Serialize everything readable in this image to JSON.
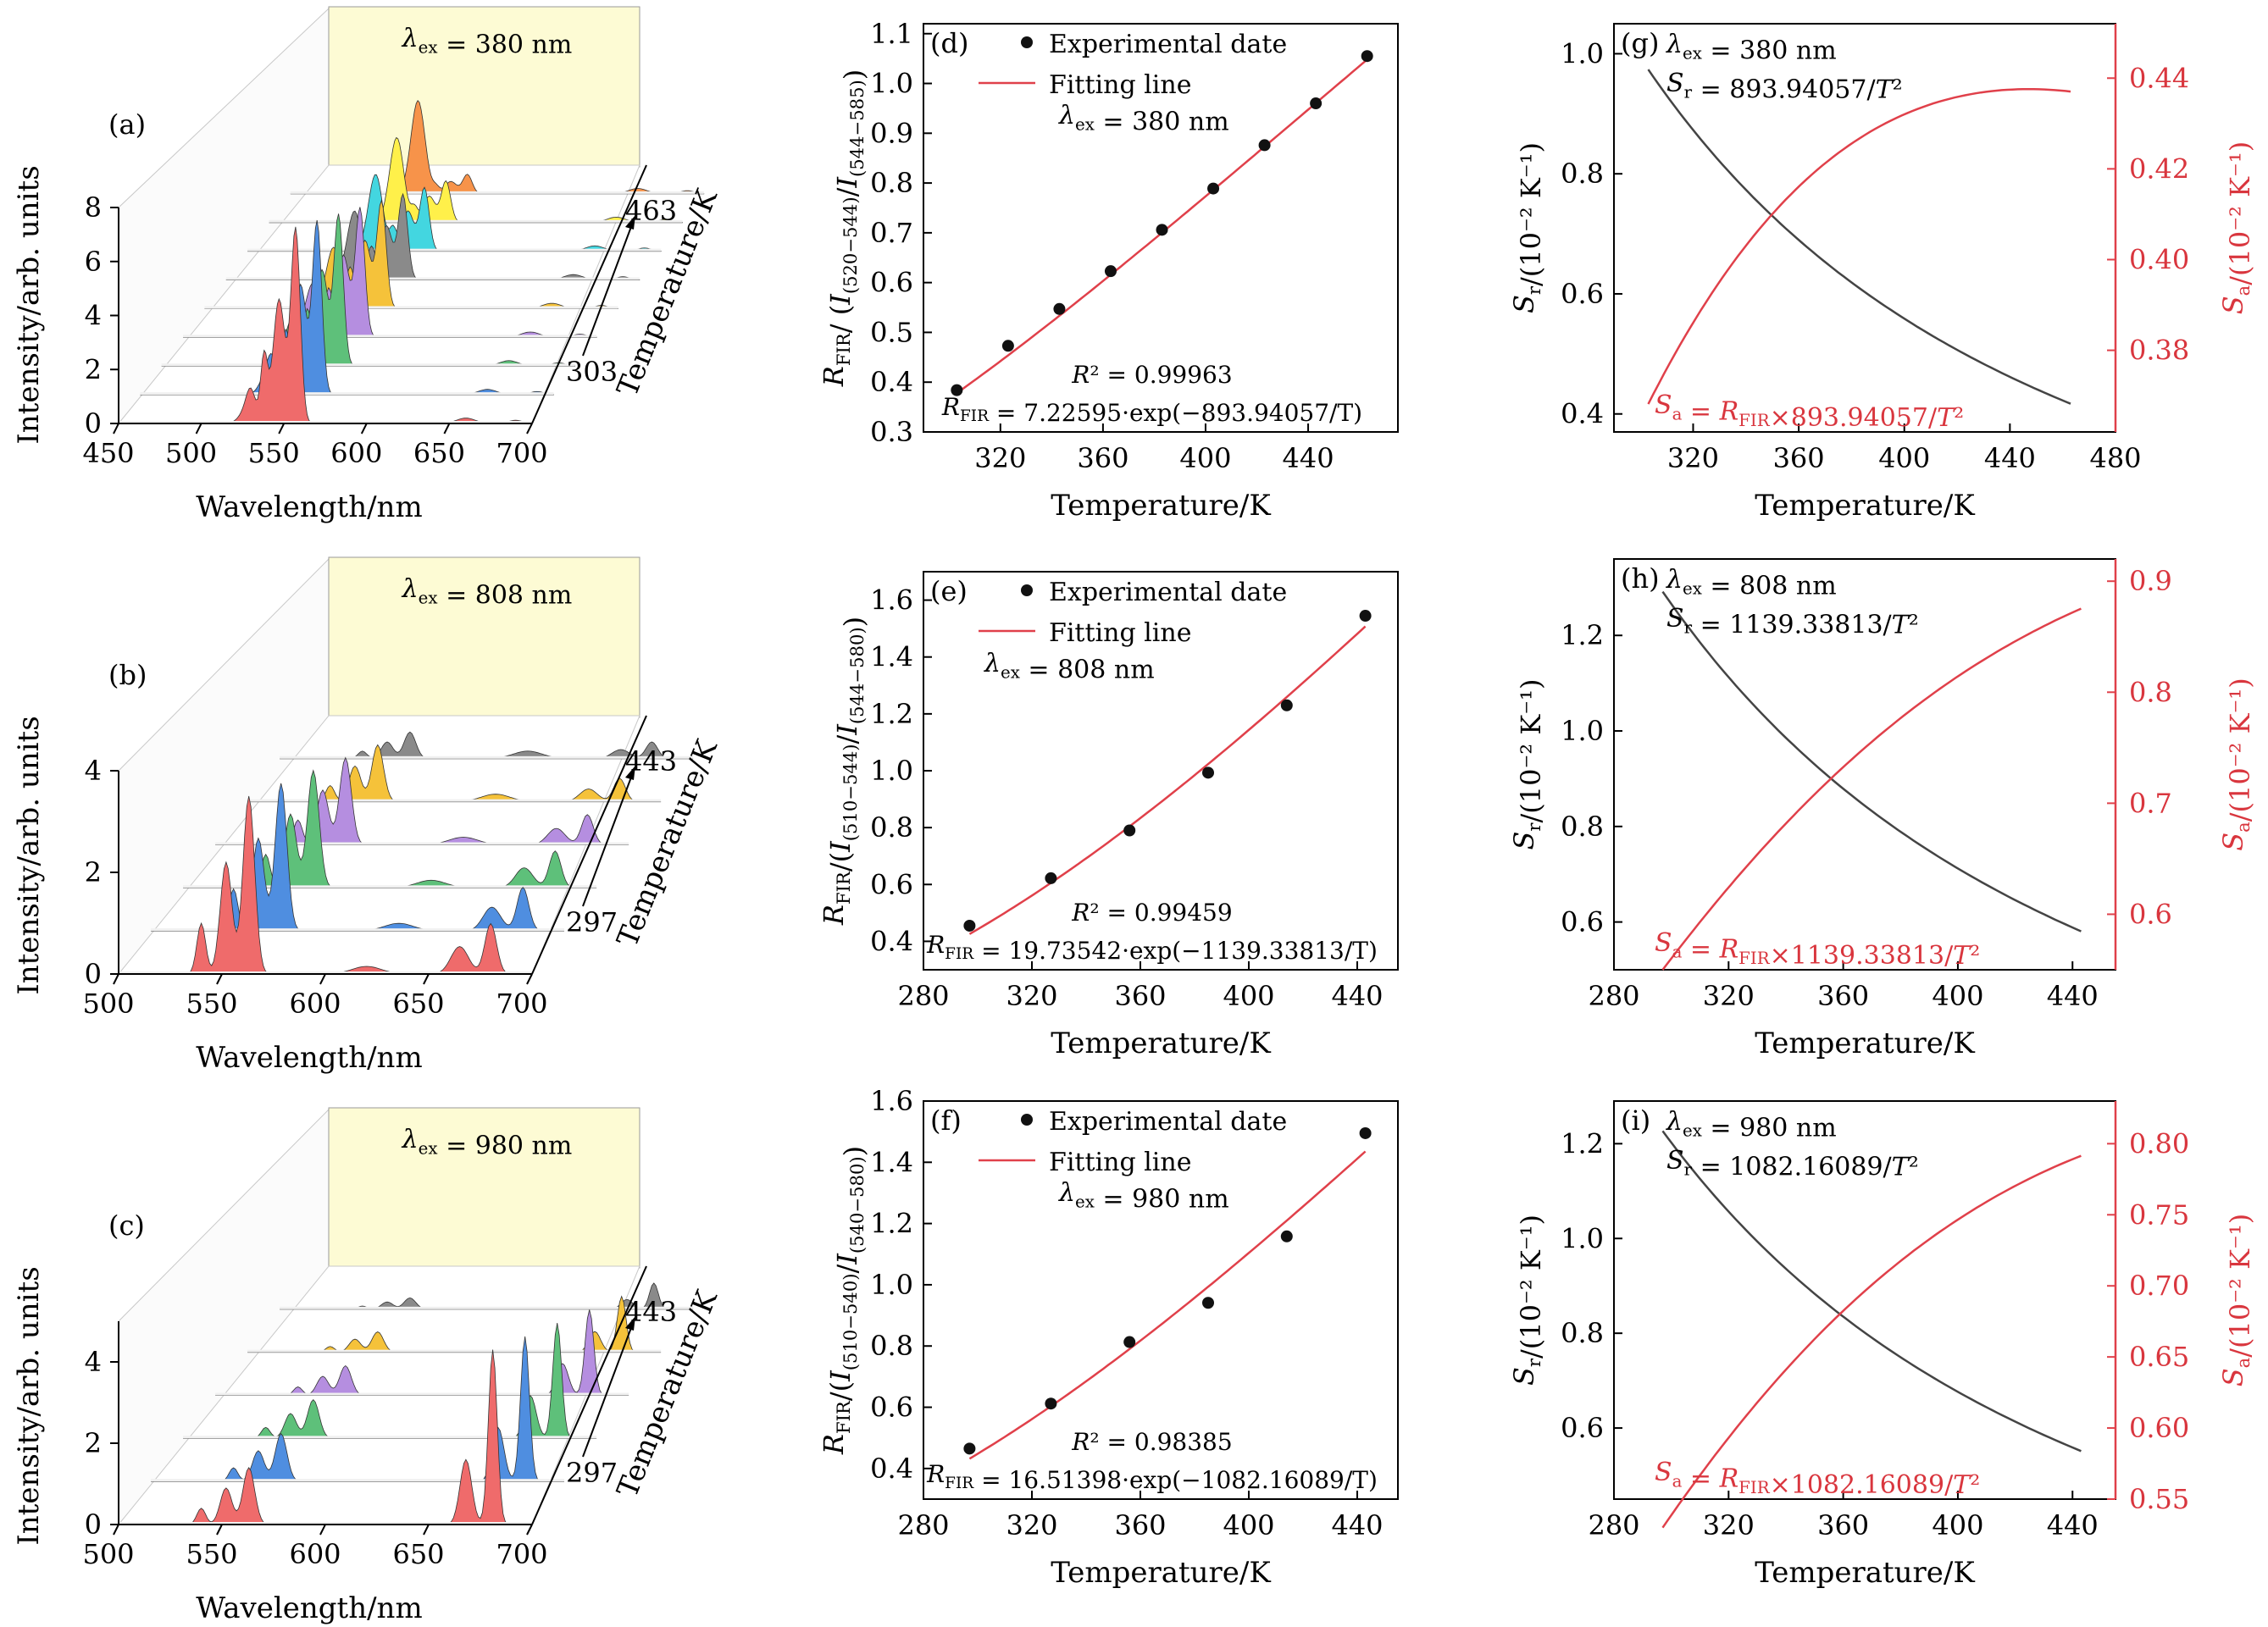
{
  "colors": {
    "fit_line": "#e0404a",
    "sa_curve": "#e0404a",
    "sr_curve": "#444444",
    "right_axis": "#e0404a",
    "backwall": "#fdfbd4",
    "spectra": [
      "#ef6b6b",
      "#4f8ee0",
      "#5ec07a",
      "#b58ee0",
      "#f5c23a",
      "#8a8a8a",
      "#43d6e0",
      "#fff04a",
      "#f7934a"
    ]
  },
  "chart_data": [
    {
      "id": "a",
      "type": "area",
      "panel_label": "(a)",
      "annotation": "λex = 380 nm",
      "xlabel": "Wavelength/nm",
      "ylabel": "Intensity/arb. units",
      "depth_label": "Temperature/K",
      "xticks": [
        450,
        500,
        550,
        600,
        650,
        700
      ],
      "yticks": [
        0,
        2,
        4,
        6,
        8
      ],
      "xlim": [
        450,
        700
      ],
      "ylim": [
        0,
        8
      ],
      "depth_ticks": [
        "303",
        "463"
      ],
      "series_count": 9
    },
    {
      "id": "b",
      "type": "area",
      "panel_label": "(b)",
      "annotation": "λex = 808 nm",
      "xlabel": "Wavelength/nm",
      "ylabel": "Intensity/arb. units",
      "depth_label": "Temperature/K",
      "xticks": [
        500,
        550,
        600,
        650,
        700
      ],
      "yticks": [
        0,
        2,
        4
      ],
      "xlim": [
        500,
        700
      ],
      "ylim": [
        0,
        4
      ],
      "depth_ticks": [
        "297",
        "443"
      ],
      "series_count": 6
    },
    {
      "id": "c",
      "type": "area",
      "panel_label": "(c)",
      "annotation": "λex = 980 nm",
      "xlabel": "Wavelength/nm",
      "ylabel": "Intensity/arb. units",
      "depth_label": "Temperature/K",
      "xticks": [
        500,
        550,
        600,
        650,
        700
      ],
      "yticks": [
        0,
        2,
        4
      ],
      "xlim": [
        500,
        700
      ],
      "ylim": [
        0,
        5
      ],
      "depth_ticks": [
        "297",
        "443"
      ],
      "series_count": 6
    },
    {
      "id": "d",
      "type": "scatter",
      "panel_label": "(d)",
      "legend": [
        "Experimental date",
        "Fitting line"
      ],
      "annotation": "λex = 380 nm",
      "r2": "R² = 0.99963",
      "equation": "RFIR = 7.22595·exp(−893.94057/T)",
      "xlabel": "Temperature/K",
      "ylabel": "RFIR/ (I(520−544)/I(544−585))",
      "xlim": [
        290,
        475
      ],
      "ylim": [
        0.3,
        1.12
      ],
      "xticks": [
        320,
        360,
        400,
        440
      ],
      "yticks": [
        0.3,
        0.4,
        0.5,
        0.6,
        0.7,
        0.8,
        0.9,
        1.0,
        1.1
      ],
      "fit": {
        "A": 7.22595,
        "B": 893.94057
      },
      "x": [
        303,
        323,
        343,
        363,
        383,
        403,
        423,
        443,
        463
      ],
      "y": [
        0.384,
        0.473,
        0.547,
        0.623,
        0.706,
        0.789,
        0.876,
        0.96,
        1.055
      ]
    },
    {
      "id": "e",
      "type": "scatter",
      "panel_label": "(e)",
      "legend": [
        "Experimental date",
        "Fitting line"
      ],
      "annotation": "λex = 808 nm",
      "r2": "R² = 0.99459",
      "equation": "RFIR = 19.73542·exp(−1139.33813/T)",
      "xlabel": "Temperature/K",
      "ylabel": "RFIR/(I(510−544)/I(544−580))",
      "xlim": [
        280,
        455
      ],
      "ylim": [
        0.3,
        1.7
      ],
      "xticks": [
        280,
        320,
        360,
        400,
        440
      ],
      "yticks": [
        0.4,
        0.6,
        0.8,
        1.0,
        1.2,
        1.4,
        1.6
      ],
      "fit": {
        "A": 19.73542,
        "B": 1139.33813
      },
      "x": [
        297,
        327,
        356,
        385,
        414,
        443
      ],
      "y": [
        0.455,
        0.622,
        0.79,
        0.993,
        1.23,
        1.545
      ]
    },
    {
      "id": "f",
      "type": "scatter",
      "panel_label": "(f)",
      "legend": [
        "Experimental date",
        "Fitting line"
      ],
      "annotation": "λex = 980 nm",
      "r2": "R² = 0.98385",
      "equation": "RFIR = 16.51398·exp(−1082.16089/T)",
      "xlabel": "Temperature/K",
      "ylabel": "RFIR/(I(510−540)/I(540−580))",
      "xlim": [
        280,
        455
      ],
      "ylim": [
        0.3,
        1.6
      ],
      "xticks": [
        280,
        320,
        360,
        400,
        440
      ],
      "yticks": [
        0.4,
        0.6,
        0.8,
        1.0,
        1.2,
        1.4,
        1.6
      ],
      "fit": {
        "A": 16.51398,
        "B": 1082.16089
      },
      "x": [
        297,
        327,
        356,
        385,
        414,
        443
      ],
      "y": [
        0.465,
        0.612,
        0.813,
        0.941,
        1.158,
        1.495
      ]
    },
    {
      "id": "g",
      "type": "line",
      "panel_label": "(g)",
      "annotation": "λex = 380 nm",
      "sr_eq": "Sr = 893.94057/T²",
      "sa_eq": "Sa = RFIR×893.94057/T²",
      "xlabel": "Temperature/K",
      "ylabel": "Sr/(10⁻² K⁻¹)",
      "ylabel_right": "Sa/(10⁻² K⁻¹)",
      "xlim": [
        290,
        480
      ],
      "ylim": [
        0.37,
        1.05
      ],
      "ylim_right": [
        0.362,
        0.452
      ],
      "xticks": [
        320,
        360,
        400,
        440,
        480
      ],
      "yticks": [
        0.4,
        0.6,
        0.8,
        1.0
      ],
      "yticks_right": [
        0.38,
        0.4,
        0.42,
        0.44
      ],
      "A": 7.22595,
      "B": 893.94057,
      "t_range": [
        303,
        463
      ]
    },
    {
      "id": "h",
      "type": "line",
      "panel_label": "(h)",
      "annotation": "λex = 808 nm",
      "sr_eq": "Sr = 1139.33813/T²",
      "sa_eq": "Sa = RFIR×1139.33813/T²",
      "xlabel": "Temperature/K",
      "ylabel": "Sr/(10⁻² K⁻¹)",
      "ylabel_right": "Sa/(10⁻² K⁻¹)",
      "xlim": [
        280,
        455
      ],
      "ylim": [
        0.5,
        1.36
      ],
      "ylim_right": [
        0.55,
        0.92
      ],
      "xticks": [
        280,
        320,
        360,
        400,
        440
      ],
      "yticks": [
        0.6,
        0.8,
        1.0,
        1.2
      ],
      "yticks_right": [
        0.6,
        0.7,
        0.8,
        0.9
      ],
      "A": 19.73542,
      "B": 1139.33813,
      "t_range": [
        297,
        443
      ]
    },
    {
      "id": "i",
      "type": "line",
      "panel_label": "(i)",
      "annotation": "λex = 980 nm",
      "sr_eq": "Sr = 1082.16089/T²",
      "sa_eq": "Sa = RFIR×1082.16089/T²",
      "xlabel": "Temperature/K",
      "ylabel": "Sr/(10⁻² K⁻¹)",
      "ylabel_right": "Sa/(10⁻² K⁻¹)",
      "xlim": [
        280,
        455
      ],
      "ylim": [
        0.45,
        1.29
      ],
      "ylim_right": [
        0.55,
        0.83
      ],
      "xticks": [
        280,
        320,
        360,
        400,
        440
      ],
      "yticks": [
        0.6,
        0.8,
        1.0,
        1.2
      ],
      "yticks_right": [
        0.55,
        0.6,
        0.65,
        0.7,
        0.75,
        0.8
      ],
      "A": 16.51398,
      "B": 1082.16089,
      "t_range": [
        297,
        443
      ]
    }
  ]
}
